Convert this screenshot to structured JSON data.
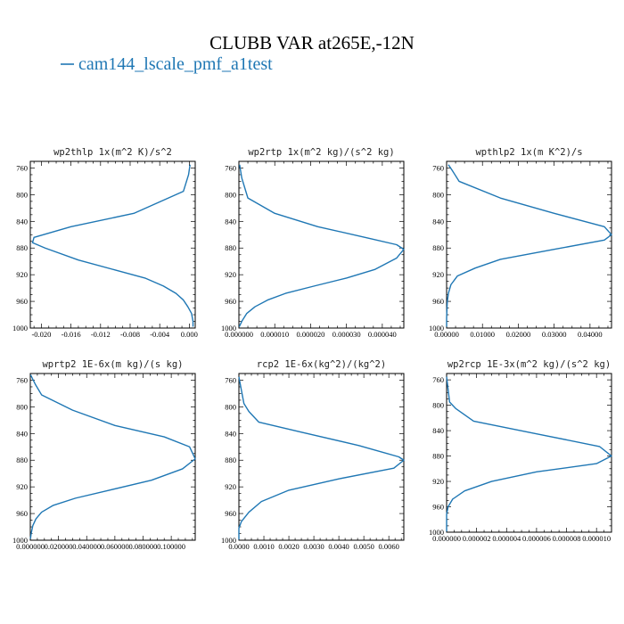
{
  "figure": {
    "title": "CLUBB VAR at265E,-12N",
    "legend": [
      {
        "label": "cam144_lscale_pmf_a1test",
        "color": "#1f77b4"
      }
    ]
  },
  "chart_data": [
    {
      "type": "line",
      "title": "wp2thlp  1x(m^2 K)/s^2",
      "xlim": [
        -0.0215,
        0.0008
      ],
      "ylim": [
        1000,
        750
      ],
      "xticks": [
        -0.02,
        -0.016,
        -0.012,
        -0.008,
        -0.004,
        0.0
      ],
      "xtick_labels": [
        "-0.020",
        "-0.016",
        "-0.012",
        "-0.008",
        "-0.004",
        "0.000"
      ],
      "yticks": [
        760,
        800,
        840,
        880,
        920,
        960,
        1000
      ],
      "ytick_labels": [
        "760",
        "800",
        "840",
        "880",
        "920",
        "960",
        "1000"
      ],
      "series": [
        {
          "color": "#1f77b4",
          "x": [
            0.0001,
            -0.0001,
            -0.0008,
            -0.0075,
            -0.016,
            -0.021,
            -0.0212,
            -0.0195,
            -0.015,
            -0.01,
            -0.006,
            -0.0035,
            -0.0018,
            -0.0008,
            -0.0002,
            0.0003,
            0.0005,
            0.0005
          ],
          "y": [
            755,
            770,
            795,
            828,
            848,
            864,
            872,
            880,
            898,
            913,
            925,
            937,
            948,
            958,
            968,
            978,
            990,
            998
          ]
        }
      ]
    },
    {
      "type": "line",
      "title": "wp2rtp  1x(m^2 kg)/(s^2 kg)",
      "xlim": [
        0,
        4.6e-05
      ],
      "ylim": [
        1000,
        750
      ],
      "xticks": [
        0,
        1e-05,
        2e-05,
        3e-05,
        4e-05
      ],
      "xtick_labels": [
        "0.000000",
        "0.000010",
        "0.000020",
        "0.000030",
        "0.000040"
      ],
      "yticks": [
        760,
        800,
        840,
        880,
        920,
        960,
        1000
      ],
      "ytick_labels": [
        "760",
        "800",
        "840",
        "880",
        "920",
        "960",
        "1000"
      ],
      "series": [
        {
          "color": "#1f77b4",
          "x": [
            2e-07,
            8e-07,
            2.5e-06,
            1e-05,
            2.2e-05,
            3.6e-05,
            4.4e-05,
            4.6e-05,
            4.4e-05,
            3.8e-05,
            3e-05,
            2.1e-05,
            1.3e-05,
            8e-06,
            4.5e-06,
            2.2e-06,
            8e-07,
            1e-07
          ],
          "y": [
            755,
            775,
            805,
            828,
            848,
            865,
            875,
            882,
            895,
            912,
            925,
            937,
            948,
            958,
            968,
            978,
            990,
            998
          ]
        }
      ]
    },
    {
      "type": "line",
      "title": "wpthlp2  1x(m K^2)/s",
      "xlim": [
        0,
        0.046
      ],
      "ylim": [
        1000,
        750
      ],
      "xticks": [
        0,
        0.01,
        0.02,
        0.03,
        0.04
      ],
      "xtick_labels": [
        "0.00000",
        "0.01000",
        "0.02000",
        "0.03000",
        "0.04000"
      ],
      "yticks": [
        760,
        800,
        840,
        880,
        920,
        960,
        1000
      ],
      "ytick_labels": [
        "760",
        "800",
        "840",
        "880",
        "920",
        "960",
        "1000"
      ],
      "series": [
        {
          "color": "#1f77b4",
          "x": [
            0.0005,
            0.0015,
            0.0035,
            0.015,
            0.03,
            0.044,
            0.046,
            0.044,
            0.03,
            0.015,
            0.008,
            0.003,
            0.0012,
            0.0005,
            0.0002,
            0.0001,
            0.0,
            0.0
          ],
          "y": [
            755,
            763,
            780,
            805,
            828,
            848,
            860,
            868,
            882,
            897,
            910,
            922,
            935,
            948,
            960,
            972,
            985,
            998
          ]
        }
      ]
    },
    {
      "type": "line",
      "title": "wprtp2  1E-6x(m kg)/(s kg)",
      "xlim": [
        0,
        0.117
      ],
      "ylim": [
        1000,
        750
      ],
      "xticks": [
        0,
        0.02,
        0.04,
        0.06,
        0.08,
        0.1
      ],
      "xtick_labels": [
        "0.000000",
        "0.020000",
        "0.040000",
        "0.060000",
        "0.080000",
        "0.100000"
      ],
      "yticks": [
        760,
        800,
        840,
        880,
        920,
        960,
        1000
      ],
      "ytick_labels": [
        "760",
        "800",
        "840",
        "880",
        "920",
        "960",
        "1000"
      ],
      "series": [
        {
          "color": "#1f77b4",
          "x": [
            0.0002,
            0.0035,
            0.008,
            0.03,
            0.06,
            0.095,
            0.113,
            0.117,
            0.108,
            0.086,
            0.056,
            0.032,
            0.016,
            0.008,
            0.004,
            0.0018,
            0.0006,
            0.0001
          ],
          "y": [
            752,
            766,
            782,
            805,
            828,
            845,
            860,
            878,
            893,
            910,
            925,
            937,
            948,
            958,
            968,
            978,
            990,
            998
          ]
        }
      ]
    },
    {
      "type": "line",
      "title": "rcp2  1E-6x(kg^2)/(kg^2)",
      "xlim": [
        0,
        0.0066
      ],
      "ylim": [
        1000,
        750
      ],
      "xticks": [
        0,
        0.001,
        0.002,
        0.003,
        0.004,
        0.005,
        0.006
      ],
      "xtick_labels": [
        "0.0000",
        "0.0010",
        "0.0020",
        "0.0030",
        "0.0040",
        "0.0050",
        "0.0060"
      ],
      "yticks": [
        760,
        800,
        840,
        880,
        920,
        960,
        1000
      ],
      "ytick_labels": [
        "760",
        "800",
        "840",
        "880",
        "920",
        "960",
        "1000"
      ],
      "series": [
        {
          "color": "#1f77b4",
          "x": [
            0.0,
            0.0001,
            0.0002,
            0.0004,
            0.0008,
            0.0025,
            0.0048,
            0.0064,
            0.0066,
            0.0062,
            0.004,
            0.002,
            0.0009,
            0.0004,
            0.0001,
            0.0,
            0.0,
            0.0
          ],
          "y": [
            755,
            775,
            795,
            807,
            823,
            838,
            858,
            875,
            880,
            892,
            908,
            925,
            942,
            958,
            972,
            982,
            992,
            999
          ]
        }
      ]
    },
    {
      "type": "line",
      "title": "wp2rcp  1E-3x(m^2 kg)/(s^2 kg)",
      "xlim": [
        0,
        1.1e-05
      ],
      "ylim": [
        1000,
        750
      ],
      "xticks": [
        0,
        2e-06,
        4e-06,
        6e-06,
        8e-06,
        1e-05
      ],
      "xtick_labels": [
        "0.000000",
        "0.000002",
        "0.000004",
        "0.000006",
        "0.000008",
        "0.000010"
      ],
      "yticks": [
        760,
        800,
        840,
        880,
        920,
        960,
        1000
      ],
      "ytick_labels": [
        "760",
        "800",
        "840",
        "880",
        "920",
        "960",
        "1000"
      ],
      "series": [
        {
          "color": "#1f77b4",
          "x": [
            0.0,
            1e-07,
            2e-07,
            6e-07,
            1.8e-06,
            6e-06,
            1.02e-05,
            1.1e-05,
            1e-05,
            6e-06,
            3e-06,
            1.2e-06,
            4e-07,
            1e-07,
            0.0,
            0.0,
            0.0,
            0.0
          ],
          "y": [
            755,
            775,
            795,
            805,
            825,
            845,
            865,
            880,
            892,
            905,
            920,
            935,
            948,
            960,
            972,
            982,
            992,
            999
          ]
        }
      ]
    }
  ]
}
